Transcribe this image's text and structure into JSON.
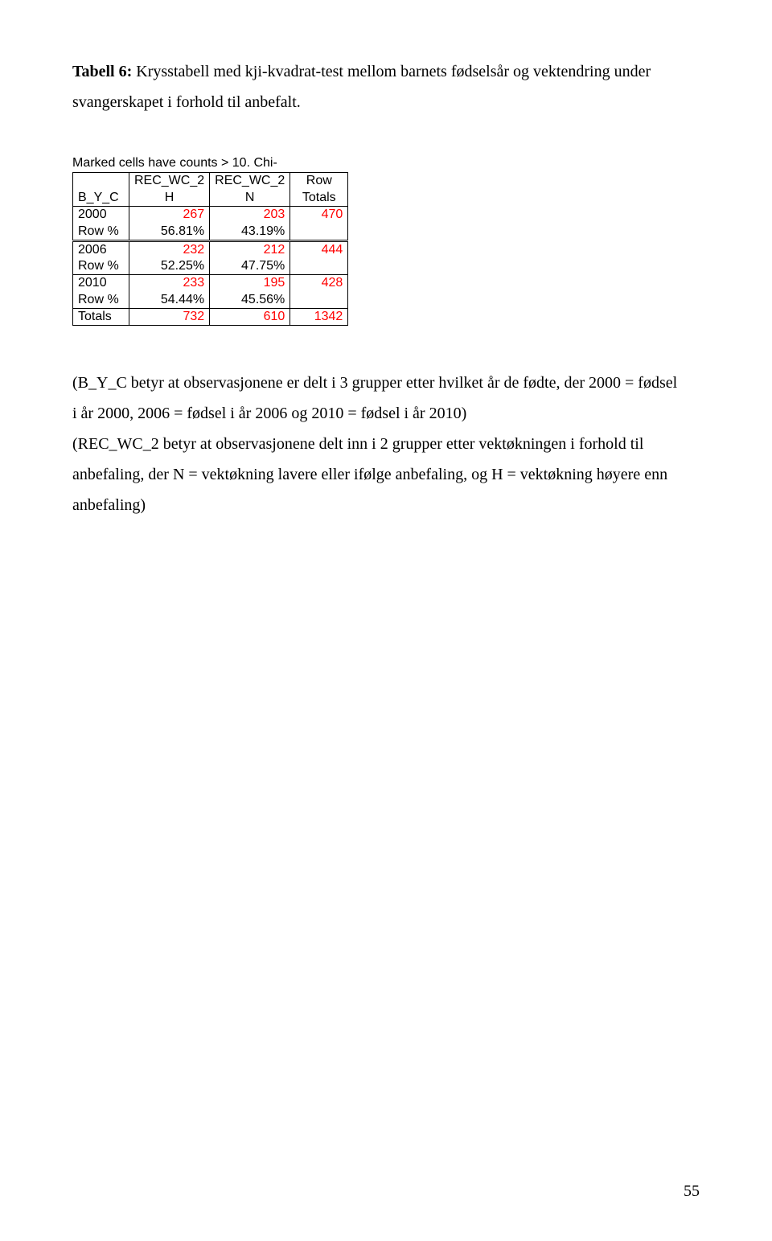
{
  "title": {
    "label": "Tabell 6:",
    "text_part1": " Krysstabell med kji-kvadrat-test mellom barnets fødselsår og vektendring under",
    "text_part2": "svangerskapet i forhold til anbefalt."
  },
  "caption": "Marked cells have counts > 10. Chi-",
  "table": {
    "colors": {
      "red": "#ff0000",
      "black": "#000000",
      "background": "#ffffff"
    },
    "font_family": "Arial",
    "font_size_pt": 12,
    "headers": {
      "row_label": "B_Y_C",
      "c1_top": "REC_WC_2",
      "c1_bot": "H",
      "c2_top": "REC_WC_2",
      "c2_bot": "N",
      "c3_top": "Row",
      "c3_bot": "Totals"
    },
    "rows": [
      {
        "label": "2000",
        "v1": "267",
        "v2": "203",
        "v3": "470",
        "red": true
      },
      {
        "label": "Row %",
        "v1": "56.81%",
        "v2": "43.19%",
        "v3": "",
        "red": false
      },
      {
        "label": "2006",
        "v1": "232",
        "v2": "212",
        "v3": "444",
        "red": true
      },
      {
        "label": "Row %",
        "v1": "52.25%",
        "v2": "47.75%",
        "v3": "",
        "red": false
      },
      {
        "label": "2010",
        "v1": "233",
        "v2": "195",
        "v3": "428",
        "red": true
      },
      {
        "label": "Row %",
        "v1": "54.44%",
        "v2": "45.56%",
        "v3": "",
        "red": false
      }
    ],
    "totals": {
      "label": "Totals",
      "v1": "732",
      "v2": "610",
      "v3": "1342",
      "red": true
    }
  },
  "explain": {
    "line1": "(B_Y_C betyr at observasjonene er delt i 3 grupper etter hvilket år de fødte, der 2000 = fødsel",
    "line2": "i år 2000, 2006 = fødsel i år 2006 og 2010 = fødsel i år 2010)",
    "line3": "(REC_WC_2 betyr at observasjonene delt inn i 2 grupper etter vektøkningen i forhold til",
    "line4": "anbefaling, der N = vektøkning lavere eller ifølge anbefaling, og H = vektøkning høyere enn",
    "line5": "anbefaling)"
  },
  "page_number": "55"
}
